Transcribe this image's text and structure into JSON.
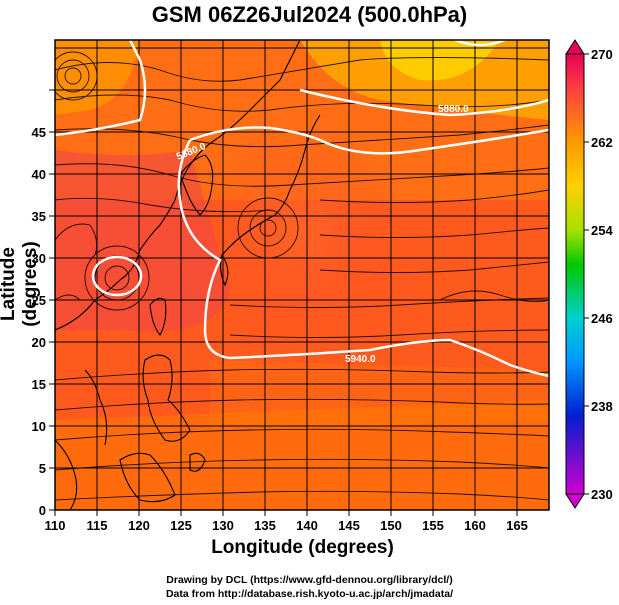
{
  "title": "GSM 06Z26Jul2024 (500.0hPa)",
  "axes": {
    "xlabel": "Longitude (degrees)",
    "ylabel": "Latitude  (degrees)",
    "x_ticks": [
      "110",
      "115",
      "120",
      "125",
      "130",
      "135",
      "140",
      "145",
      "150",
      "155",
      "160",
      "165"
    ],
    "y_ticks": [
      "0",
      "5",
      "10",
      "15",
      "20",
      "25",
      "30",
      "35",
      "40",
      "45"
    ]
  },
  "colorbar": {
    "labels": [
      "270",
      "262",
      "254",
      "246",
      "238",
      "230"
    ],
    "colors": [
      "#e8005a",
      "#ff3c3c",
      "#ff8c00",
      "#ffcc00",
      "#b4e600",
      "#00c800",
      "#00c8c8",
      "#0096ff",
      "#0000c8",
      "#c800c8"
    ]
  },
  "contour_labels": [
    "5880.0",
    "5880.0",
    "5940.0"
  ],
  "credits": {
    "line1": "Drawing by DCL (https://www.gfd-dennou.org/library/dcl/)",
    "line2": "Data from http://database.rish.kyoto-u.ac.jp/arch/jmadata/"
  },
  "chart_data": {
    "type": "heatmap",
    "title": "GSM 06Z26Jul2024 (500.0hPa)",
    "xlabel": "Longitude (degrees)",
    "ylabel": "Latitude  (degrees)",
    "xlim": [
      110,
      169
    ],
    "ylim": [
      0,
      50
    ],
    "colorbar_range": [
      230,
      270
    ],
    "colorbar_ticks": [
      270,
      262,
      254,
      246,
      238,
      230
    ],
    "contour_values": [
      5880.0,
      5940.0
    ],
    "legend": "right"
  }
}
